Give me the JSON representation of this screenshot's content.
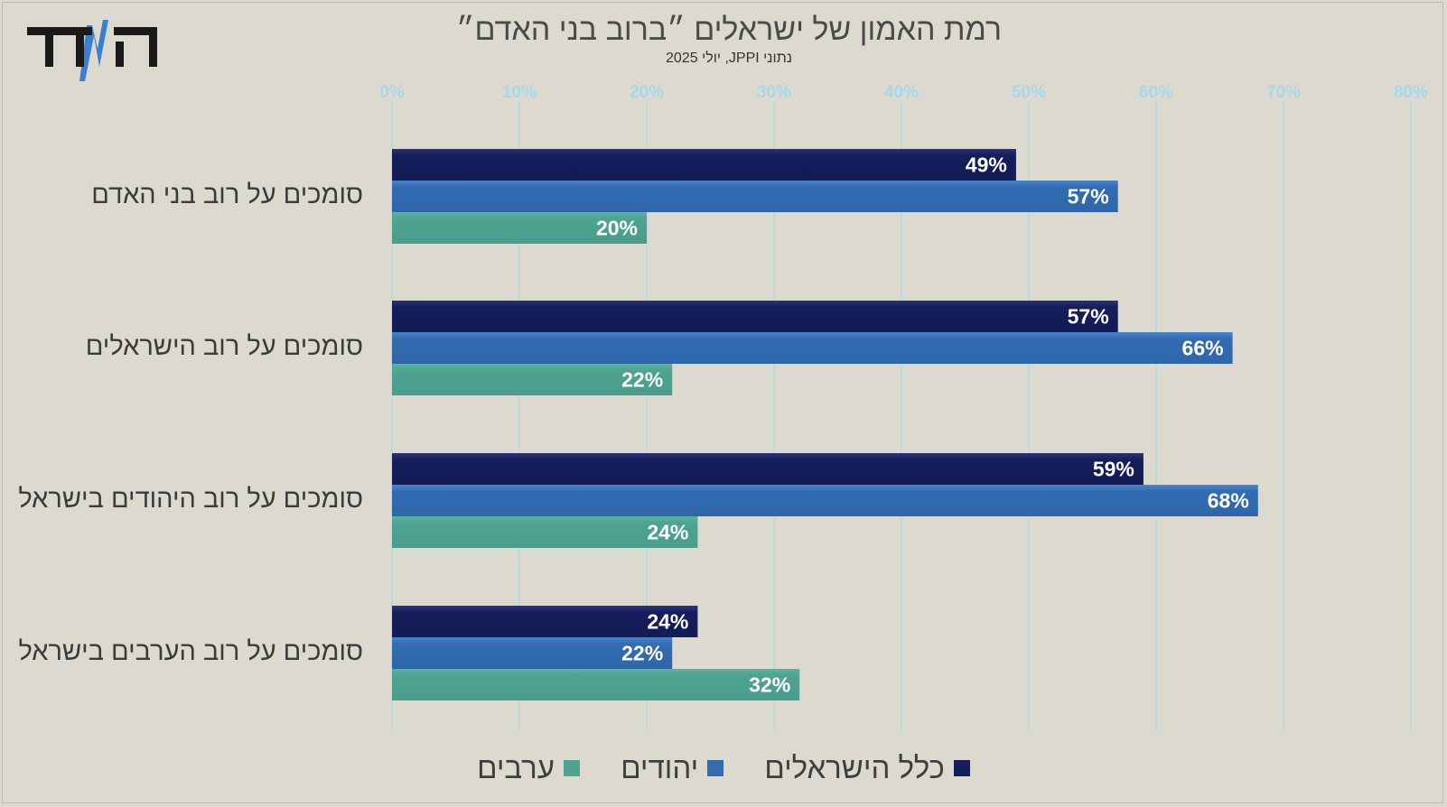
{
  "logo": {
    "text": "הNדד",
    "icon": "hamadad-logo"
  },
  "chart_data": {
    "type": "bar",
    "orientation": "horizontal",
    "title": "רמת האמון של ישראלים ״ברוב בני האדם״",
    "subtitle": "נתוני JPPI, יולי 2025",
    "categories": [
      "סומכים על רוב בני האדם",
      "סומכים על רוב הישראלים",
      "סומכים על רוב היהודים בישראל",
      "סומכים על רוב הערבים בישראל"
    ],
    "series": [
      {
        "name": "כלל הישראלים",
        "color": "#151d5c",
        "values": [
          49,
          57,
          59,
          24
        ],
        "labels": [
          "49%",
          "57%",
          "59%",
          "24%"
        ]
      },
      {
        "name": "יהודים",
        "color": "#336cb2",
        "values": [
          57,
          66,
          68,
          22
        ],
        "labels": [
          "57%",
          "66%",
          "68%",
          "22%"
        ]
      },
      {
        "name": "ערבים",
        "color": "#4ea391",
        "values": [
          20,
          22,
          24,
          32
        ],
        "labels": [
          "20%",
          "22%",
          "24%",
          "32%"
        ]
      }
    ],
    "xlim": [
      0,
      80
    ],
    "xticks": [
      0,
      10,
      20,
      30,
      40,
      50,
      60,
      70,
      80
    ],
    "xtick_labels": [
      "0%",
      "10%",
      "20%",
      "30%",
      "40%",
      "50%",
      "60%",
      "70%",
      "80%"
    ],
    "legend": "bottom-center",
    "grid": true
  }
}
